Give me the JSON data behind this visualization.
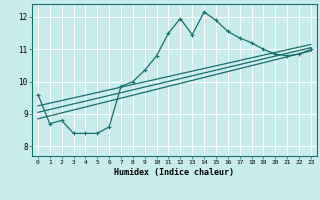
{
  "xlabel": "Humidex (Indice chaleur)",
  "bg_color": "#c8ecec",
  "line_color": "#1a6e6e",
  "grid_color": "#ffffff",
  "xlim": [
    -0.5,
    23.5
  ],
  "ylim": [
    7.7,
    12.4
  ],
  "xticks": [
    0,
    1,
    2,
    3,
    4,
    5,
    6,
    7,
    8,
    9,
    10,
    11,
    12,
    13,
    14,
    15,
    16,
    17,
    18,
    19,
    20,
    21,
    22,
    23
  ],
  "yticks": [
    8,
    9,
    10,
    11,
    12
  ],
  "line1_x": [
    0,
    1,
    2,
    3,
    4,
    5,
    6,
    7,
    8,
    9,
    10,
    11,
    12,
    13,
    14,
    15,
    16,
    17,
    18,
    19,
    20,
    21,
    22,
    23
  ],
  "line1_y": [
    9.6,
    8.7,
    8.8,
    8.4,
    8.4,
    8.4,
    8.6,
    9.85,
    10.0,
    10.35,
    10.8,
    11.5,
    11.95,
    11.45,
    12.15,
    11.9,
    11.55,
    11.35,
    11.2,
    11.0,
    10.85,
    10.8,
    10.85,
    11.0
  ],
  "line2_x": [
    0,
    23
  ],
  "line2_y": [
    8.85,
    10.95
  ],
  "line3_x": [
    0,
    23
  ],
  "line3_y": [
    9.05,
    11.05
  ],
  "line4_x": [
    0,
    23
  ],
  "line4_y": [
    9.25,
    11.15
  ]
}
